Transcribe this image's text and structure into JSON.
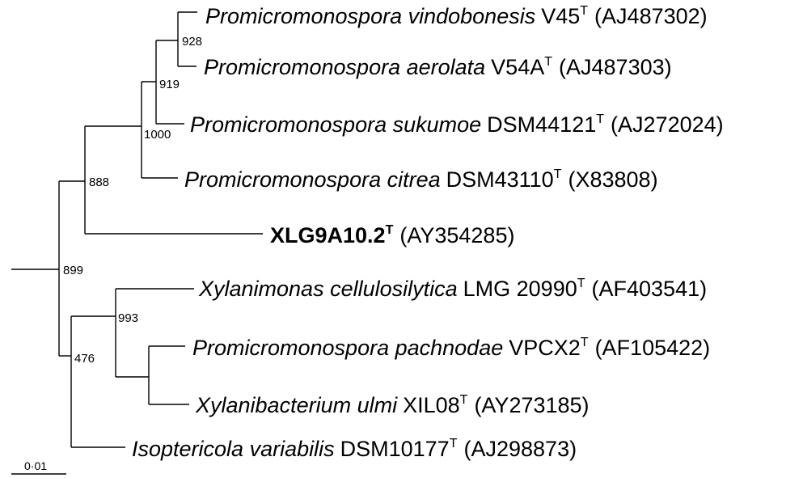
{
  "taxa": [
    {
      "genus_species": "Promicromonospora vindobonesis",
      "strain": "V45",
      "type_mark": "T",
      "accession": "(AJ487302)"
    },
    {
      "genus_species": "Promicromonospora aerolata",
      "strain": "V54A",
      "type_mark": "T",
      "accession": "(AJ487303)"
    },
    {
      "genus_species": "Promicromonospora sukumoe",
      "strain": "DSM44121",
      "type_mark": "T",
      "accession": "(AJ272024)"
    },
    {
      "genus_species": "Promicromonospora citrea",
      "strain": "DSM43110",
      "type_mark": "T",
      "accession": "(X83808)"
    },
    {
      "genus_species": "",
      "strain": "XLG9A10.2",
      "type_mark": "T",
      "accession": "(AY354285)",
      "bold": true
    },
    {
      "genus_species": "Xylanimonas cellulosilytica",
      "strain": "LMG 20990",
      "type_mark": "T",
      "accession": "(AF403541)"
    },
    {
      "genus_species": "Promicromonospora pachnodae",
      "strain": "VPCX2",
      "type_mark": "T",
      "accession": "(AF105422)"
    },
    {
      "genus_species": "Xylanibacterium ulmi",
      "strain": "XIL08",
      "type_mark": "T",
      "accession": "(AY273185)"
    },
    {
      "genus_species": "Isoptericola variabilis",
      "strain": "DSM10177",
      "type_mark": "T",
      "accession": "(AJ298873)"
    }
  ],
  "bootstrap": {
    "n928": "928",
    "n919": "919",
    "n1000": "1000",
    "n888": "888",
    "n899": "899",
    "n993": "993",
    "n476": "476"
  },
  "scale_bar": {
    "label": "0·01"
  }
}
